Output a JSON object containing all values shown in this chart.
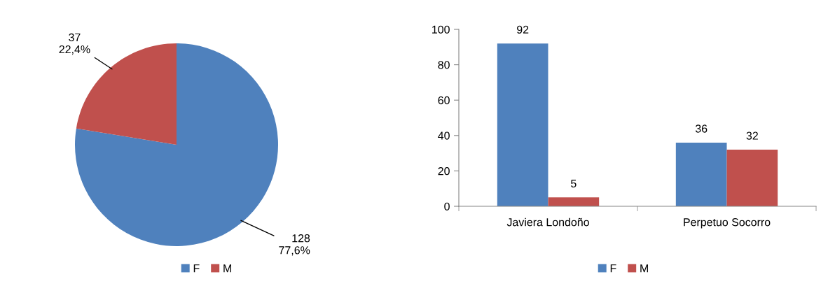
{
  "chart_data": [
    {
      "type": "pie",
      "categories": [
        "F",
        "M"
      ],
      "values": [
        128,
        37
      ],
      "colors": [
        "#4f81bd",
        "#c0504d"
      ],
      "value_labels": [
        "128\n77,6%",
        "37\n22,4%"
      ],
      "legend": "bottom"
    },
    {
      "type": "bar",
      "categories": [
        "Javiera Londoño",
        "Perpetuo Socorro"
      ],
      "series": [
        {
          "name": "F",
          "color": "#4f81bd",
          "values": [
            92,
            36
          ]
        },
        {
          "name": "M",
          "color": "#c0504d",
          "values": [
            5,
            32
          ]
        }
      ],
      "ylim": [
        0,
        100
      ],
      "yticks": [
        0,
        20,
        40,
        60,
        80,
        100
      ],
      "data_labels": true,
      "grid": false,
      "legend": "bottom"
    }
  ]
}
